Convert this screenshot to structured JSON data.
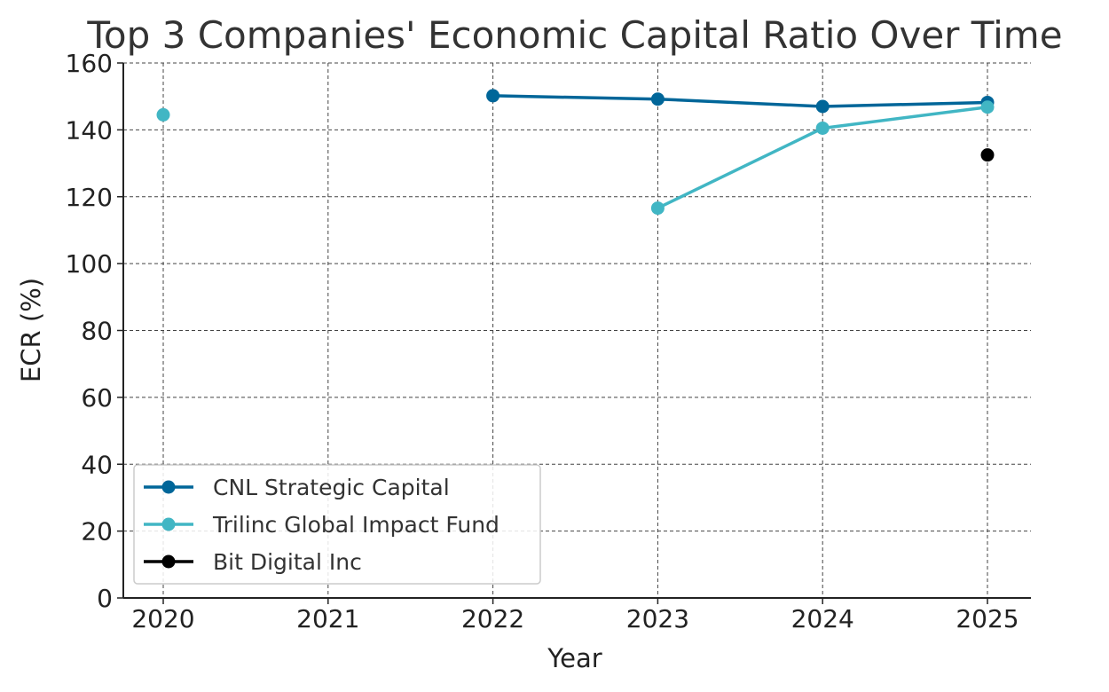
{
  "chart_data": {
    "type": "line",
    "title": "Top 3 Companies' Economic Capital Ratio Over Time",
    "xlabel": "Year",
    "ylabel": "ECR (%)",
    "x": [
      2020,
      2021,
      2022,
      2023,
      2024,
      2025
    ],
    "x_tick_labels": [
      "2020",
      "2021",
      "2022",
      "2023",
      "2024",
      "2025"
    ],
    "y_ticks": [
      0,
      20,
      40,
      60,
      80,
      100,
      120,
      140,
      160
    ],
    "ylim": [
      0,
      160
    ],
    "grid": true,
    "legend_position": "lower-left",
    "series": [
      {
        "name": "CNL Strategic Capital",
        "color": "#006699",
        "x": [
          2022,
          2023,
          2024,
          2025
        ],
        "values": [
          150.2,
          149.2,
          147.0,
          148.2
        ]
      },
      {
        "name": "Trilinc Global Impact Fund",
        "color": "#41B6C4",
        "x": [
          2020,
          2023,
          2024,
          2025
        ],
        "values": [
          144.5,
          116.6,
          140.5,
          146.8
        ]
      },
      {
        "name": "Bit Digital Inc",
        "color": "#000000",
        "x": [
          2025
        ],
        "values": [
          132.5
        ]
      }
    ]
  }
}
